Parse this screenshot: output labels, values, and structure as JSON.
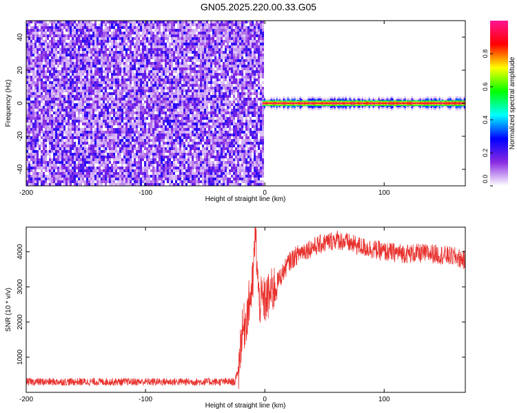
{
  "title": "GN05.2025.220.00.33.G05",
  "chart_data": [
    {
      "type": "heatmap",
      "xlabel": "Height of straight line (km)",
      "ylabel": "Frequency (Hz)",
      "xlim": [
        -200,
        168
      ],
      "ylim": [
        -50,
        50
      ],
      "x_ticks": [
        -200,
        -100,
        0,
        100
      ],
      "y_ticks": [
        -40,
        -20,
        0,
        20,
        40
      ],
      "colorbar": {
        "label": "Normalized spectral amplitude",
        "range": [
          0,
          1
        ],
        "ticks": [
          0.0,
          0.2,
          0.4,
          0.6,
          0.8
        ],
        "tick_labels": [
          "0.0",
          "0.2",
          "0.4",
          "0.6",
          "0.8"
        ],
        "colors": [
          "#ffffff",
          "#8a2be2",
          "#0000ff",
          "#00ffff",
          "#00ff00",
          "#ffff00",
          "#ff0000",
          "#ff1493"
        ]
      },
      "regions": [
        {
          "x_range": [
            -200,
            -2
          ],
          "freq_range": [
            -50,
            50
          ],
          "amplitude": "low noise, ~0.1-0.25"
        },
        {
          "x_range": [
            -2,
            168
          ],
          "freq_range": [
            -3,
            3
          ],
          "amplitude": "peak ~0.9 at 0 Hz"
        }
      ]
    },
    {
      "type": "line",
      "xlabel": "Height of straight line (km)",
      "ylabel": "SNR (10 * v/v)",
      "xlim": [
        -200,
        168
      ],
      "ylim": [
        0,
        4700
      ],
      "x_ticks": [
        -200,
        -100,
        0,
        100
      ],
      "y_ticks": [
        1000,
        2000,
        3000,
        4000
      ],
      "series_color": "#e8302c",
      "x": [
        -200,
        -150,
        -100,
        -50,
        -25,
        -22,
        -20,
        -15,
        -10,
        -8,
        -5,
        0,
        5,
        10,
        20,
        30,
        50,
        60,
        80,
        100,
        120,
        140,
        160,
        168
      ],
      "y": [
        300,
        300,
        300,
        300,
        300,
        700,
        1500,
        2200,
        3100,
        4600,
        2600,
        2600,
        2800,
        3100,
        3700,
        4000,
        4250,
        4350,
        4150,
        4000,
        3950,
        3950,
        3850,
        3750
      ]
    }
  ]
}
